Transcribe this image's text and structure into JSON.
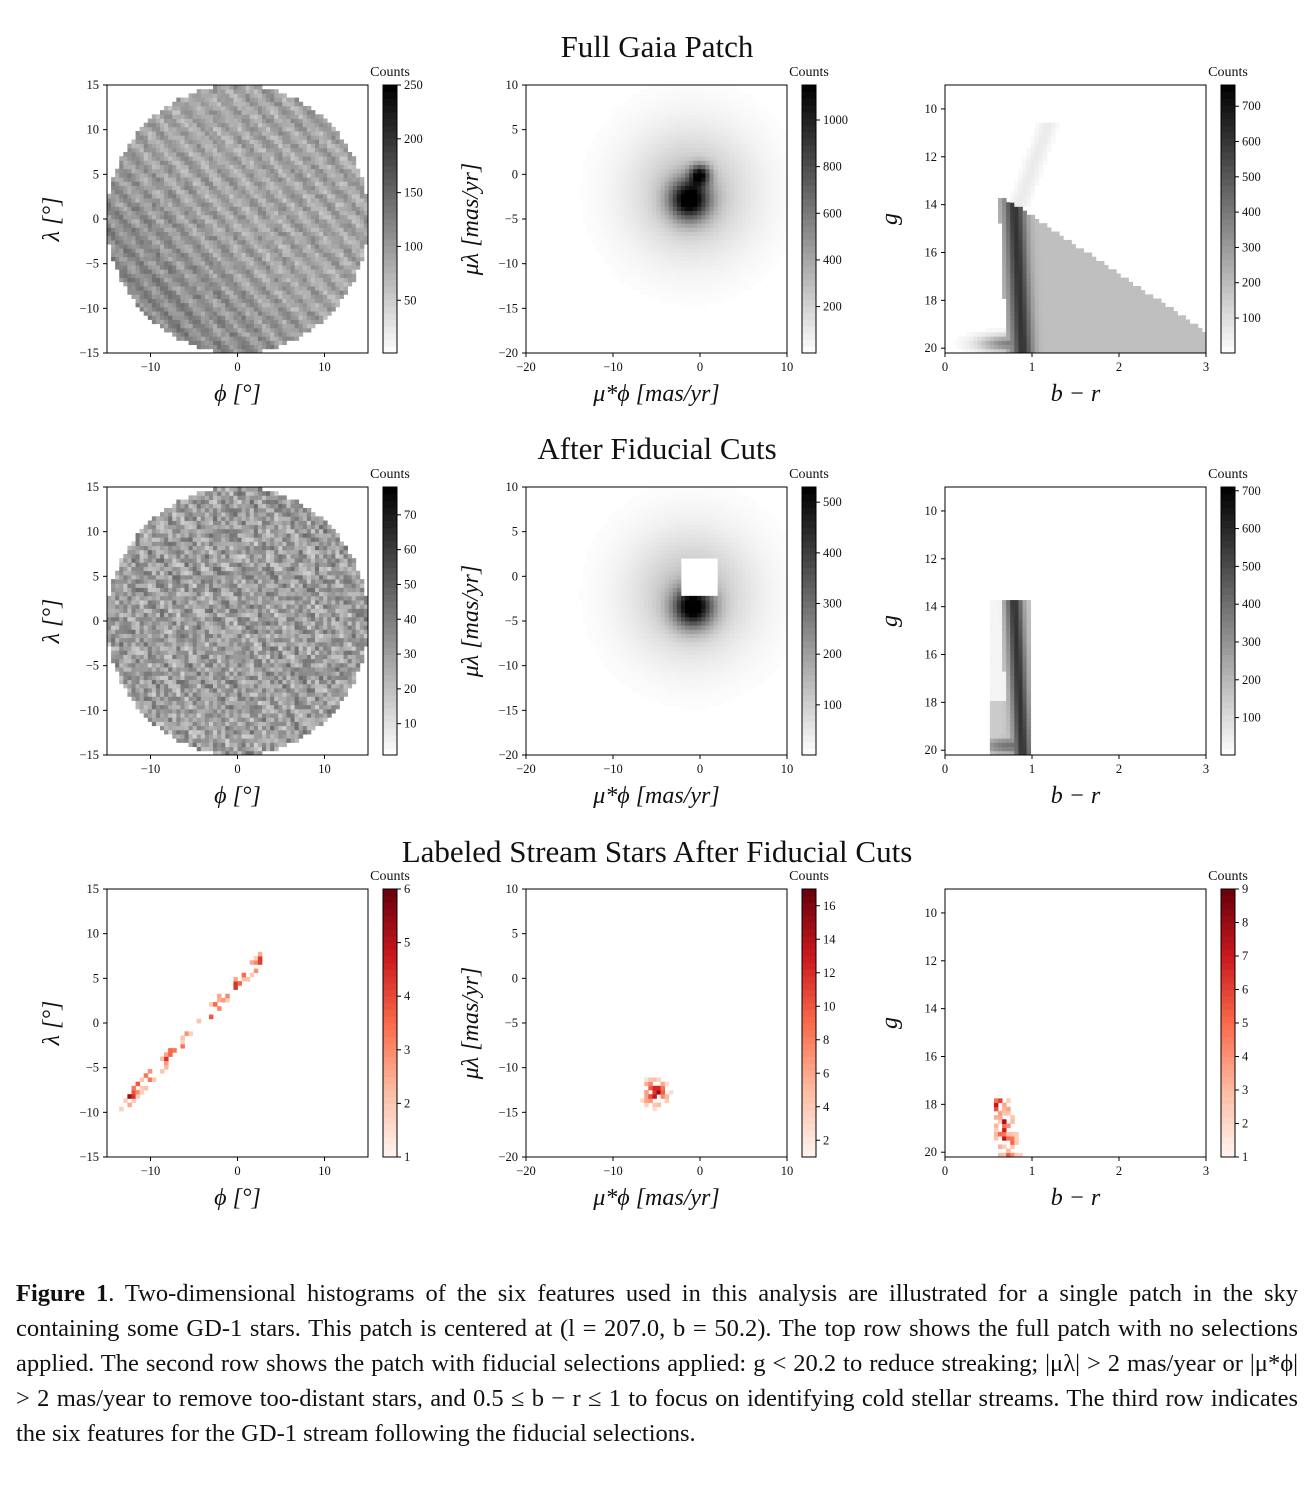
{
  "figure": {
    "rows": [
      {
        "title": "Full Gaia Patch",
        "panels": [
          {
            "kind": "sky",
            "cmap": "gray",
            "cbar_label": "Counts",
            "cbar_ticks": [
              50,
              100,
              150,
              200,
              250
            ],
            "cbar_range": [
              1,
              250
            ],
            "xlabel": "ϕ [°]",
            "ylabel": "λ [°]",
            "xlim": [
              -15,
              15
            ],
            "ylim": [
              -15,
              15
            ],
            "xticks": [
              -10,
              0,
              10
            ],
            "yticks": [
              -15,
              -10,
              -5,
              0,
              5,
              10,
              15
            ]
          },
          {
            "kind": "pm_full",
            "cmap": "gray",
            "cbar_label": "Counts",
            "cbar_ticks": [
              200,
              400,
              600,
              800,
              1000
            ],
            "cbar_range": [
              1,
              1150
            ],
            "xlabel": "μ*ϕ [mas/yr]",
            "ylabel": "μλ [mas/yr]",
            "xlim": [
              -20,
              10
            ],
            "ylim": [
              -20,
              10
            ],
            "xticks": [
              -20,
              -10,
              0,
              10
            ],
            "yticks": [
              -20,
              -15,
              -10,
              -5,
              0,
              5,
              10
            ]
          },
          {
            "kind": "cmd_full",
            "cmap": "gray",
            "cbar_label": "Counts",
            "cbar_ticks": [
              100,
              200,
              300,
              400,
              500,
              600,
              700
            ],
            "cbar_range": [
              1,
              760
            ],
            "xlabel": "b − r",
            "ylabel": "g",
            "xlim": [
              0,
              3
            ],
            "ylim": [
              20.2,
              9
            ],
            "xticks": [
              0,
              1,
              2,
              3
            ],
            "yticks": [
              10,
              12,
              14,
              16,
              18,
              20
            ]
          }
        ]
      },
      {
        "title": "After Fiducial Cuts",
        "panels": [
          {
            "kind": "sky_cut",
            "cmap": "gray",
            "cbar_label": "Counts",
            "cbar_ticks": [
              10,
              20,
              30,
              40,
              50,
              60,
              70
            ],
            "cbar_range": [
              1,
              78
            ],
            "xlabel": "ϕ [°]",
            "ylabel": "λ [°]",
            "xlim": [
              -15,
              15
            ],
            "ylim": [
              -15,
              15
            ],
            "xticks": [
              -10,
              0,
              10
            ],
            "yticks": [
              -15,
              -10,
              -5,
              0,
              5,
              10,
              15
            ]
          },
          {
            "kind": "pm_cut",
            "cmap": "gray",
            "cbar_label": "Counts",
            "cbar_ticks": [
              100,
              200,
              300,
              400,
              500
            ],
            "cbar_range": [
              1,
              530
            ],
            "xlabel": "μ*ϕ [mas/yr]",
            "ylabel": "μλ [mas/yr]",
            "xlim": [
              -20,
              10
            ],
            "ylim": [
              -20,
              10
            ],
            "xticks": [
              -20,
              -10,
              0,
              10
            ],
            "yticks": [
              -20,
              -15,
              -10,
              -5,
              0,
              5,
              10
            ]
          },
          {
            "kind": "cmd_cut",
            "cmap": "gray",
            "cbar_label": "Counts",
            "cbar_ticks": [
              100,
              200,
              300,
              400,
              500,
              600,
              700
            ],
            "cbar_range": [
              1,
              710
            ],
            "xlabel": "b − r",
            "ylabel": "g",
            "xlim": [
              0,
              3
            ],
            "ylim": [
              20.2,
              9
            ],
            "xticks": [
              0,
              1,
              2,
              3
            ],
            "yticks": [
              10,
              12,
              14,
              16,
              18,
              20
            ]
          }
        ]
      },
      {
        "title": "Labeled Stream Stars After Fiducial Cuts",
        "panels": [
          {
            "kind": "sky_stream",
            "cmap": "reds",
            "cbar_label": "Counts",
            "cbar_ticks": [
              1,
              2,
              3,
              4,
              5,
              6
            ],
            "cbar_range": [
              1,
              6
            ],
            "xlabel": "ϕ [°]",
            "ylabel": "λ [°]",
            "xlim": [
              -15,
              15
            ],
            "ylim": [
              -15,
              15
            ],
            "xticks": [
              -10,
              0,
              10
            ],
            "yticks": [
              -15,
              -10,
              -5,
              0,
              5,
              10,
              15
            ]
          },
          {
            "kind": "pm_stream",
            "cmap": "reds",
            "cbar_label": "Counts",
            "cbar_ticks": [
              2,
              4,
              6,
              8,
              10,
              12,
              14,
              16
            ],
            "cbar_range": [
              1,
              17
            ],
            "xlabel": "μ*ϕ [mas/yr]",
            "ylabel": "μλ [mas/yr]",
            "xlim": [
              -20,
              10
            ],
            "ylim": [
              -20,
              10
            ],
            "xticks": [
              -20,
              -10,
              0,
              10
            ],
            "yticks": [
              -20,
              -15,
              -10,
              -5,
              0,
              5,
              10
            ]
          },
          {
            "kind": "cmd_stream",
            "cmap": "reds",
            "cbar_label": "Counts",
            "cbar_ticks": [
              1,
              2,
              3,
              4,
              5,
              6,
              7,
              8,
              9
            ],
            "cbar_range": [
              1,
              9
            ],
            "xlabel": "b − r",
            "ylabel": "g",
            "xlim": [
              0,
              3
            ],
            "ylim": [
              20.2,
              9
            ],
            "xticks": [
              0,
              1,
              2,
              3
            ],
            "yticks": [
              10,
              12,
              14,
              16,
              18,
              20
            ]
          }
        ]
      }
    ]
  },
  "caption": {
    "label": "Figure 1",
    "text": ". Two-dimensional histograms of the six features used in this analysis are illustrated for a single patch in the sky containing some GD-1 stars. This patch is centered at (l = 207.0, b = 50.2). The top row shows the full patch with no selections applied. The second row shows the patch with fiducial selections applied: g < 20.2 to reduce streaking; |μλ| > 2 mas/year or |μ*ϕ| > 2 mas/year to remove too-distant stars, and 0.5 ≤ b − r ≤ 1 to focus on identifying cold stellar streams. The third row indicates the six features for the GD-1 stream following the fiducial selections."
  }
}
